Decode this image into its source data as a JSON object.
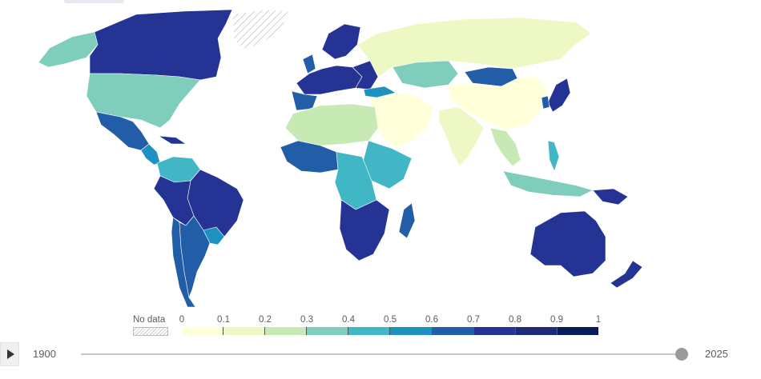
{
  "legend": {
    "no_data_label": "No data",
    "ticks": [
      "0",
      "0.1",
      "0.2",
      "0.3",
      "0.4",
      "0.5",
      "0.6",
      "0.7",
      "0.8",
      "0.9",
      "1"
    ],
    "bins": [
      "#ffffd9",
      "#edf8c4",
      "#c7e9b4",
      "#7fcdbb",
      "#41b6c4",
      "#1d91c0",
      "#225ea8",
      "#253494",
      "#1e2a78",
      "#081d58"
    ]
  },
  "timeline": {
    "start_year": "1900",
    "end_year": "2025",
    "selected_fraction": 1.0
  },
  "colors": {
    "no_data_hatch": "#c9c9c9",
    "background": "#ffffff"
  }
}
